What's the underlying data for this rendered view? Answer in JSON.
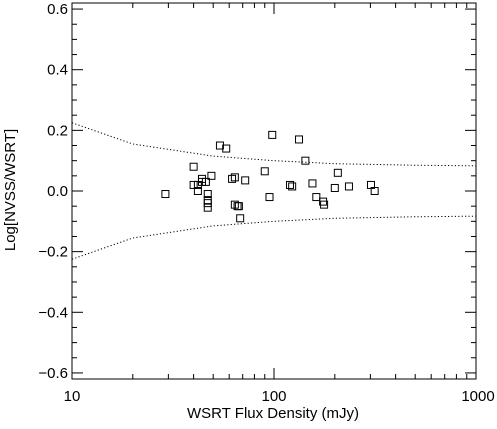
{
  "chart_data": {
    "type": "scatter",
    "title": "",
    "xlabel": "WSRT Flux Density (mJy)",
    "ylabel": "Log[NVSS/WSRT]",
    "xscale": "log",
    "xlim": [
      10,
      1000
    ],
    "ylim": [
      -0.62,
      0.62
    ],
    "x_ticks": [
      {
        "value": 10,
        "label": "10"
      },
      {
        "value": 100,
        "label": "100"
      },
      {
        "value": 1000,
        "label": "1000"
      }
    ],
    "y_ticks": [
      {
        "value": 0.6,
        "label": "0.6"
      },
      {
        "value": 0.4,
        "label": "0.4"
      },
      {
        "value": 0.2,
        "label": "0.2"
      },
      {
        "value": 0.0,
        "label": "0.0"
      },
      {
        "value": -0.2,
        "label": "−0.2"
      },
      {
        "value": -0.4,
        "label": "−0.4"
      },
      {
        "value": -0.6,
        "label": "−0.6"
      }
    ],
    "marker": "open-square",
    "points": [
      {
        "x": 29,
        "y": -0.01
      },
      {
        "x": 40,
        "y": 0.08
      },
      {
        "x": 40,
        "y": 0.02
      },
      {
        "x": 42,
        "y": 0.02
      },
      {
        "x": 42,
        "y": 0.0
      },
      {
        "x": 44,
        "y": 0.04
      },
      {
        "x": 44,
        "y": 0.03
      },
      {
        "x": 46,
        "y": 0.03
      },
      {
        "x": 47,
        "y": -0.01
      },
      {
        "x": 47,
        "y": -0.03
      },
      {
        "x": 47,
        "y": -0.04
      },
      {
        "x": 47,
        "y": -0.055
      },
      {
        "x": 49,
        "y": 0.05
      },
      {
        "x": 54,
        "y": 0.15
      },
      {
        "x": 58,
        "y": 0.14
      },
      {
        "x": 62,
        "y": 0.04
      },
      {
        "x": 64,
        "y": 0.045
      },
      {
        "x": 64,
        "y": -0.045
      },
      {
        "x": 66,
        "y": -0.05
      },
      {
        "x": 67,
        "y": -0.05
      },
      {
        "x": 68,
        "y": -0.09
      },
      {
        "x": 72,
        "y": 0.035
      },
      {
        "x": 90,
        "y": 0.065
      },
      {
        "x": 95,
        "y": -0.02
      },
      {
        "x": 98,
        "y": 0.185
      },
      {
        "x": 120,
        "y": 0.02
      },
      {
        "x": 123,
        "y": 0.015
      },
      {
        "x": 133,
        "y": 0.17
      },
      {
        "x": 143,
        "y": 0.1
      },
      {
        "x": 155,
        "y": 0.025
      },
      {
        "x": 162,
        "y": -0.02
      },
      {
        "x": 175,
        "y": -0.035
      },
      {
        "x": 177,
        "y": -0.045
      },
      {
        "x": 200,
        "y": 0.01
      },
      {
        "x": 207,
        "y": 0.06
      },
      {
        "x": 235,
        "y": 0.015
      },
      {
        "x": 302,
        "y": 0.02
      },
      {
        "x": 315,
        "y": 0.0
      }
    ],
    "envelope": {
      "style": "dotted",
      "upper": [
        {
          "x": 10,
          "y": 0.225
        },
        {
          "x": 20,
          "y": 0.155
        },
        {
          "x": 50,
          "y": 0.115
        },
        {
          "x": 100,
          "y": 0.1
        },
        {
          "x": 200,
          "y": 0.09
        },
        {
          "x": 500,
          "y": 0.085
        },
        {
          "x": 1000,
          "y": 0.083
        }
      ],
      "lower": [
        {
          "x": 10,
          "y": -0.225
        },
        {
          "x": 20,
          "y": -0.155
        },
        {
          "x": 50,
          "y": -0.115
        },
        {
          "x": 100,
          "y": -0.1
        },
        {
          "x": 200,
          "y": -0.09
        },
        {
          "x": 500,
          "y": -0.085
        },
        {
          "x": 1000,
          "y": -0.083
        }
      ]
    },
    "grid": false,
    "legend": "none"
  }
}
